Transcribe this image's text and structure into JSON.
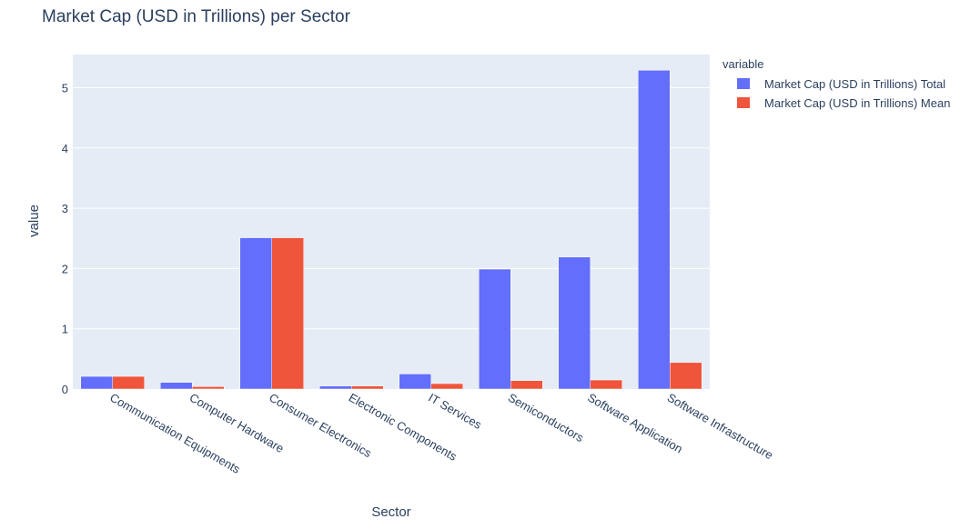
{
  "chart_data": {
    "type": "bar",
    "title": "Market Cap (USD in Trillions) per Sector",
    "xlabel": "Sector",
    "ylabel": "value",
    "categories": [
      "Communication Equipments",
      "Computer Hardware",
      "Consumer Electronics",
      "Electronic Components",
      "IT Services",
      "Semiconductors",
      "Software Application",
      "Software Infrastructure"
    ],
    "series": [
      {
        "name": "Market Cap (USD in Trillions) Total",
        "color": "#636efa",
        "values": [
          0.21,
          0.11,
          2.51,
          0.05,
          0.25,
          1.99,
          2.19,
          5.29
        ]
      },
      {
        "name": "Market Cap (USD in Trillions) Mean",
        "color": "#ef553b",
        "values": [
          0.21,
          0.04,
          2.51,
          0.05,
          0.09,
          0.14,
          0.15,
          0.44
        ]
      }
    ],
    "ylim": [
      0,
      5.55
    ],
    "yticks": [
      0,
      1,
      2,
      3,
      4,
      5
    ],
    "grid": true,
    "legend": {
      "title": "variable",
      "position": "top-right"
    },
    "colors": {
      "plot_bg": "#e5ecf6",
      "grid": "#ffffff",
      "text": "#2a3f5f"
    }
  }
}
